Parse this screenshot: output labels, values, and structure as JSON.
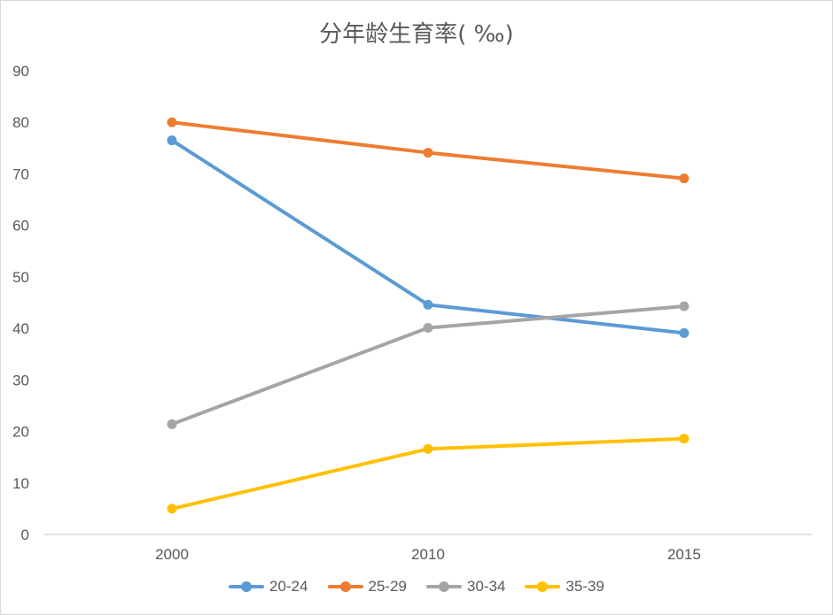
{
  "chart_data": {
    "type": "line",
    "title": "分年龄生育率( ‰)",
    "categories": [
      "2000",
      "2010",
      "2015"
    ],
    "ylim": [
      0,
      90
    ],
    "yticks": [
      0,
      10,
      20,
      30,
      40,
      50,
      60,
      70,
      80,
      90
    ],
    "grid": false,
    "legend_position": "bottom",
    "series": [
      {
        "name": "20-24",
        "color": "#5b9bd5",
        "values": [
          76.5,
          44.6,
          39.1
        ]
      },
      {
        "name": "25-29",
        "color": "#ed7d31",
        "values": [
          80.0,
          74.1,
          69.1
        ]
      },
      {
        "name": "30-34",
        "color": "#a5a5a5",
        "values": [
          21.4,
          40.1,
          44.3
        ]
      },
      {
        "name": "35-39",
        "color": "#ffc000",
        "values": [
          5.0,
          16.6,
          18.6
        ]
      }
    ]
  }
}
